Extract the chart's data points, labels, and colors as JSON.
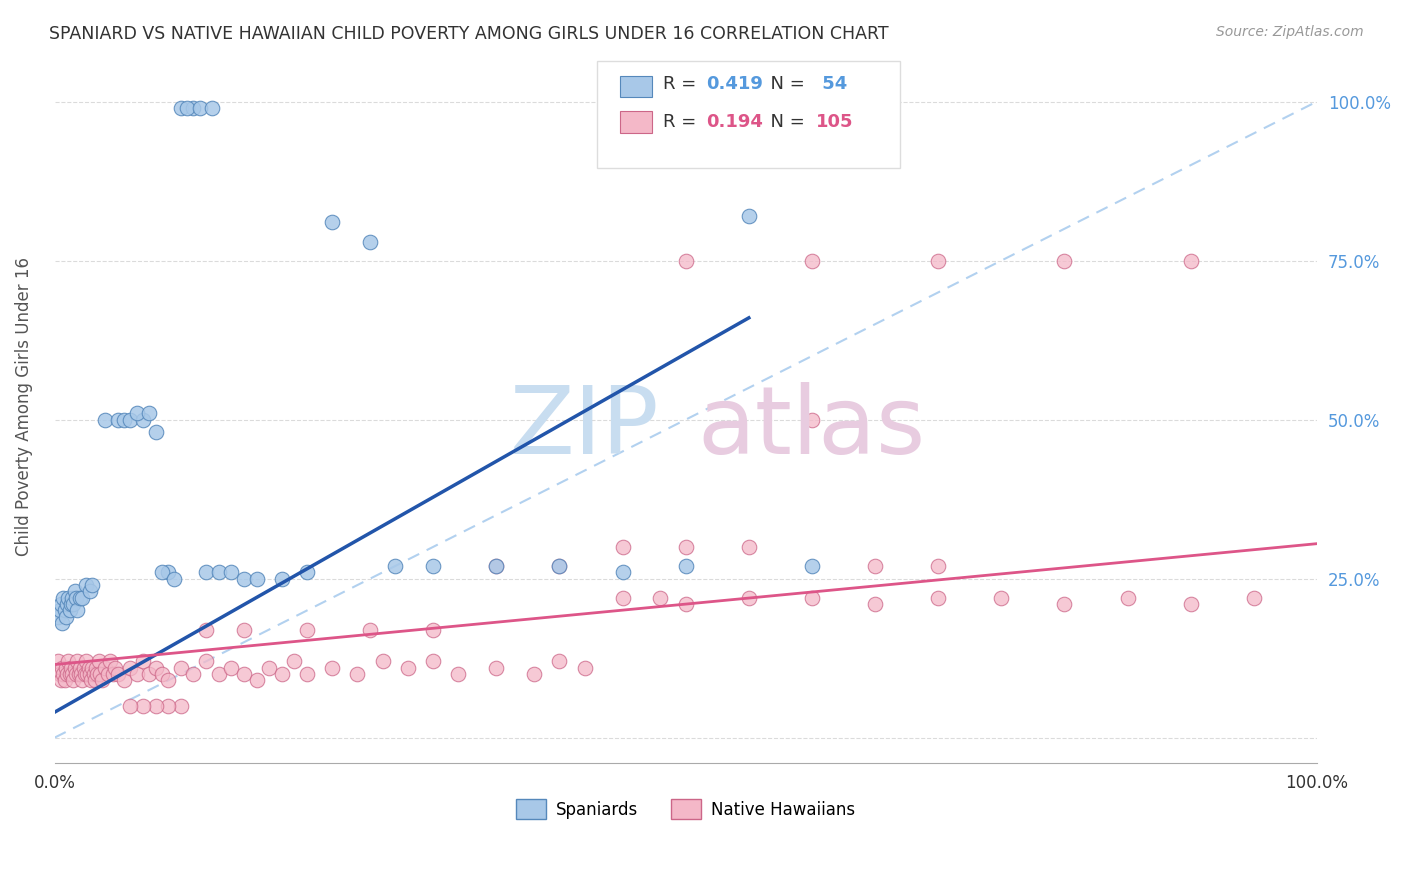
{
  "title": "SPANIARD VS NATIVE HAWAIIAN CHILD POVERTY AMONG GIRLS UNDER 16 CORRELATION CHART",
  "source": "Source: ZipAtlas.com",
  "ylabel": "Child Poverty Among Girls Under 16",
  "xlim": [
    0,
    1
  ],
  "ylim": [
    -0.04,
    1.08
  ],
  "spaniard_color": "#a8c8e8",
  "spaniard_edge_color": "#5588bb",
  "spaniard_line_color": "#2255aa",
  "hawaiian_color": "#f4b8c8",
  "hawaiian_edge_color": "#cc6688",
  "hawaiian_line_color": "#dd5588",
  "legend_bottom_spaniard": "Spaniards",
  "legend_bottom_hawaiian": "Native Hawaiians",
  "spaniard_R": "0.419",
  "hawaiian_R": "0.194",
  "spaniard_N": " 54",
  "hawaiian_N": "105",
  "spaniard_line_x0": 0.0,
  "spaniard_line_y0": 0.04,
  "spaniard_line_x1": 0.55,
  "spaniard_line_y1": 0.66,
  "hawaiian_line_x0": 0.0,
  "hawaiian_line_y0": 0.115,
  "hawaiian_line_x1": 1.0,
  "hawaiian_line_y1": 0.305,
  "spaniard_x": [
    0.003,
    0.004,
    0.005,
    0.006,
    0.007,
    0.008,
    0.009,
    0.01,
    0.011,
    0.012,
    0.013,
    0.014,
    0.015,
    0.016,
    0.017,
    0.018,
    0.02,
    0.022,
    0.025,
    0.028,
    0.03,
    0.04,
    0.05,
    0.055,
    0.06,
    0.07,
    0.08,
    0.09,
    0.1,
    0.11,
    0.12,
    0.13,
    0.14,
    0.15,
    0.16,
    0.18,
    0.2,
    0.22,
    0.25,
    0.27,
    0.3,
    0.35,
    0.4,
    0.45,
    0.5,
    0.55,
    0.6,
    0.065,
    0.075,
    0.085,
    0.095,
    0.105,
    0.115,
    0.125
  ],
  "spaniard_y": [
    0.19,
    0.2,
    0.21,
    0.18,
    0.22,
    0.2,
    0.19,
    0.21,
    0.22,
    0.2,
    0.21,
    0.22,
    0.21,
    0.23,
    0.22,
    0.2,
    0.22,
    0.22,
    0.24,
    0.23,
    0.24,
    0.5,
    0.5,
    0.5,
    0.5,
    0.5,
    0.48,
    0.26,
    0.99,
    0.99,
    0.26,
    0.26,
    0.26,
    0.25,
    0.25,
    0.25,
    0.26,
    0.81,
    0.78,
    0.27,
    0.27,
    0.27,
    0.27,
    0.26,
    0.27,
    0.82,
    0.27,
    0.51,
    0.51,
    0.26,
    0.25,
    0.99,
    0.99,
    0.99
  ],
  "hawaiian_x": [
    0.003,
    0.004,
    0.005,
    0.006,
    0.007,
    0.008,
    0.009,
    0.01,
    0.011,
    0.012,
    0.013,
    0.014,
    0.015,
    0.016,
    0.017,
    0.018,
    0.019,
    0.02,
    0.021,
    0.022,
    0.023,
    0.024,
    0.025,
    0.026,
    0.027,
    0.028,
    0.029,
    0.03,
    0.031,
    0.032,
    0.033,
    0.034,
    0.035,
    0.036,
    0.038,
    0.04,
    0.042,
    0.044,
    0.046,
    0.048,
    0.05,
    0.055,
    0.06,
    0.065,
    0.07,
    0.075,
    0.08,
    0.085,
    0.09,
    0.1,
    0.11,
    0.12,
    0.13,
    0.14,
    0.15,
    0.16,
    0.17,
    0.18,
    0.19,
    0.2,
    0.22,
    0.24,
    0.26,
    0.28,
    0.3,
    0.32,
    0.35,
    0.38,
    0.4,
    0.42,
    0.45,
    0.48,
    0.5,
    0.55,
    0.6,
    0.65,
    0.7,
    0.75,
    0.8,
    0.85,
    0.9,
    0.95,
    0.45,
    0.5,
    0.55,
    0.6,
    0.65,
    0.7,
    0.35,
    0.4,
    0.3,
    0.25,
    0.2,
    0.15,
    0.12,
    0.1,
    0.09,
    0.08,
    0.07,
    0.06,
    0.5,
    0.6,
    0.7,
    0.8,
    0.9
  ],
  "hawaiian_y": [
    0.12,
    0.1,
    0.09,
    0.11,
    0.1,
    0.09,
    0.11,
    0.1,
    0.12,
    0.1,
    0.11,
    0.1,
    0.09,
    0.11,
    0.1,
    0.12,
    0.1,
    0.11,
    0.1,
    0.09,
    0.11,
    0.1,
    0.12,
    0.1,
    0.11,
    0.1,
    0.09,
    0.11,
    0.1,
    0.09,
    0.11,
    0.1,
    0.12,
    0.1,
    0.09,
    0.11,
    0.1,
    0.12,
    0.1,
    0.11,
    0.1,
    0.09,
    0.11,
    0.1,
    0.12,
    0.1,
    0.11,
    0.1,
    0.09,
    0.11,
    0.1,
    0.12,
    0.1,
    0.11,
    0.1,
    0.09,
    0.11,
    0.1,
    0.12,
    0.1,
    0.11,
    0.1,
    0.12,
    0.11,
    0.12,
    0.1,
    0.11,
    0.1,
    0.12,
    0.11,
    0.22,
    0.22,
    0.21,
    0.22,
    0.22,
    0.21,
    0.22,
    0.22,
    0.21,
    0.22,
    0.21,
    0.22,
    0.3,
    0.3,
    0.3,
    0.5,
    0.27,
    0.27,
    0.27,
    0.27,
    0.17,
    0.17,
    0.17,
    0.17,
    0.17,
    0.05,
    0.05,
    0.05,
    0.05,
    0.05,
    0.75,
    0.75,
    0.75,
    0.75,
    0.75
  ]
}
